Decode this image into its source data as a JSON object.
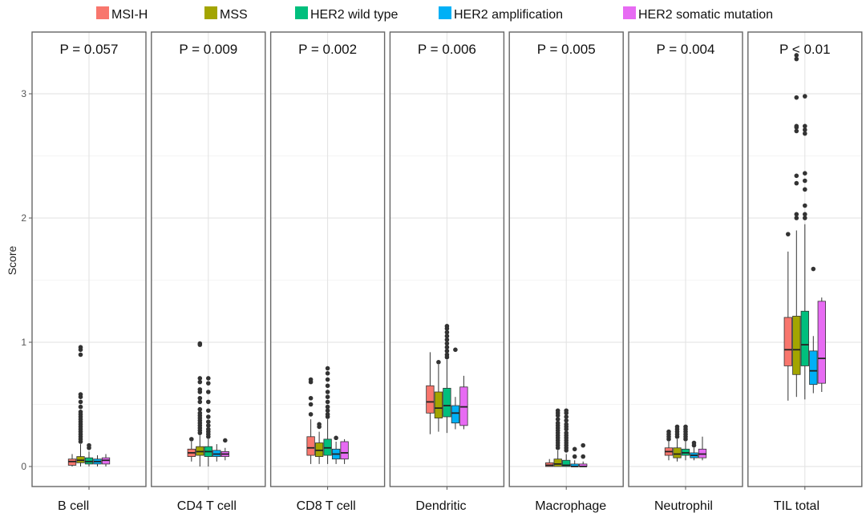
{
  "chart_data": {
    "type": "boxplot",
    "ylabel": "Score",
    "yticks": [
      0,
      1,
      2,
      3
    ],
    "ylim": [
      -0.15,
      3.45
    ],
    "grid": true,
    "legend_position": "top",
    "series": [
      {
        "name": "MSI-H",
        "color": "#F8766D"
      },
      {
        "name": "MSS",
        "color": "#A3A500"
      },
      {
        "name": "HER2 wild type",
        "color": "#00BF7D"
      },
      {
        "name": "HER2 amplification",
        "color": "#00B0F6"
      },
      {
        "name": "HER2 somatic mutation",
        "color": "#E76BF3"
      }
    ],
    "panels": [
      {
        "label": "B cell",
        "pvalue": "P = 0.057",
        "boxes": [
          {
            "q1": 0.01,
            "med": 0.04,
            "q3": 0.06,
            "lo": 0.0,
            "hi": 0.1,
            "out": []
          },
          {
            "q1": 0.03,
            "med": 0.05,
            "q3": 0.08,
            "lo": 0.0,
            "hi": 0.18,
            "out": [
              0.2,
              0.22,
              0.24,
              0.26,
              0.28,
              0.3,
              0.32,
              0.34,
              0.36,
              0.38,
              0.4,
              0.42,
              0.44,
              0.48,
              0.52,
              0.56,
              0.58,
              0.9,
              0.94,
              0.96
            ]
          },
          {
            "q1": 0.02,
            "med": 0.04,
            "q3": 0.07,
            "lo": 0.0,
            "hi": 0.12,
            "out": [
              0.15,
              0.17
            ]
          },
          {
            "q1": 0.02,
            "med": 0.04,
            "q3": 0.06,
            "lo": 0.0,
            "hi": 0.09,
            "out": []
          },
          {
            "q1": 0.02,
            "med": 0.05,
            "q3": 0.07,
            "lo": 0.0,
            "hi": 0.1,
            "out": []
          }
        ]
      },
      {
        "label": "CD4 T cell",
        "pvalue": "P = 0.009",
        "boxes": [
          {
            "q1": 0.08,
            "med": 0.11,
            "q3": 0.14,
            "lo": 0.04,
            "hi": 0.2,
            "out": [
              0.22
            ]
          },
          {
            "q1": 0.09,
            "med": 0.12,
            "q3": 0.16,
            "lo": 0.0,
            "hi": 0.25,
            "out": [
              0.27,
              0.29,
              0.31,
              0.33,
              0.35,
              0.37,
              0.39,
              0.41,
              0.43,
              0.46,
              0.52,
              0.55,
              0.6,
              0.62,
              0.68,
              0.71,
              0.98,
              0.99
            ]
          },
          {
            "q1": 0.08,
            "med": 0.12,
            "q3": 0.16,
            "lo": 0.0,
            "hi": 0.22,
            "out": [
              0.24,
              0.26,
              0.28,
              0.3,
              0.33,
              0.36,
              0.4,
              0.45,
              0.52,
              0.6,
              0.67,
              0.71
            ]
          },
          {
            "q1": 0.08,
            "med": 0.1,
            "q3": 0.13,
            "lo": 0.04,
            "hi": 0.18,
            "out": []
          },
          {
            "q1": 0.08,
            "med": 0.1,
            "q3": 0.12,
            "lo": 0.05,
            "hi": 0.15,
            "out": [
              0.21
            ]
          }
        ]
      },
      {
        "label": "CD8 T cell",
        "pvalue": "P = 0.002",
        "boxes": [
          {
            "q1": 0.09,
            "med": 0.15,
            "q3": 0.24,
            "lo": 0.02,
            "hi": 0.38,
            "out": [
              0.42,
              0.5,
              0.55,
              0.68,
              0.7
            ]
          },
          {
            "q1": 0.08,
            "med": 0.13,
            "q3": 0.19,
            "lo": 0.02,
            "hi": 0.28,
            "out": [
              0.32,
              0.34
            ]
          },
          {
            "q1": 0.09,
            "med": 0.15,
            "q3": 0.22,
            "lo": 0.02,
            "hi": 0.38,
            "out": [
              0.4,
              0.42,
              0.45,
              0.48,
              0.52,
              0.56,
              0.6,
              0.65,
              0.7,
              0.75,
              0.79
            ]
          },
          {
            "q1": 0.06,
            "med": 0.1,
            "q3": 0.14,
            "lo": 0.02,
            "hi": 0.2,
            "out": [
              0.23
            ]
          },
          {
            "q1": 0.06,
            "med": 0.11,
            "q3": 0.2,
            "lo": 0.02,
            "hi": 0.22,
            "out": []
          }
        ]
      },
      {
        "label": "Dendritic",
        "pvalue": "P = 0.006",
        "boxes": [
          {
            "q1": 0.43,
            "med": 0.52,
            "q3": 0.65,
            "lo": 0.26,
            "hi": 0.92,
            "out": []
          },
          {
            "q1": 0.39,
            "med": 0.47,
            "q3": 0.6,
            "lo": 0.28,
            "hi": 0.82,
            "out": [
              0.84
            ]
          },
          {
            "q1": 0.4,
            "med": 0.49,
            "q3": 0.63,
            "lo": 0.27,
            "hi": 0.86,
            "out": [
              0.88,
              0.9,
              0.93,
              0.96,
              0.99,
              1.02,
              1.05,
              1.08,
              1.11,
              1.13
            ]
          },
          {
            "q1": 0.35,
            "med": 0.43,
            "q3": 0.49,
            "lo": 0.3,
            "hi": 0.56,
            "out": [
              0.94
            ]
          },
          {
            "q1": 0.33,
            "med": 0.48,
            "q3": 0.64,
            "lo": 0.3,
            "hi": 0.73,
            "out": []
          }
        ]
      },
      {
        "label": "Macrophage",
        "pvalue": "P = 0.005",
        "boxes": [
          {
            "q1": 0.0,
            "med": 0.01,
            "q3": 0.03,
            "lo": 0.0,
            "hi": 0.06,
            "out": []
          },
          {
            "q1": 0.0,
            "med": 0.02,
            "q3": 0.06,
            "lo": 0.0,
            "hi": 0.13,
            "out": [
              0.15,
              0.17,
              0.19,
              0.21,
              0.23,
              0.25,
              0.27,
              0.29,
              0.31,
              0.33,
              0.35,
              0.38,
              0.41,
              0.43,
              0.45
            ]
          },
          {
            "q1": 0.0,
            "med": 0.01,
            "q3": 0.05,
            "lo": 0.0,
            "hi": 0.1,
            "out": [
              0.13,
              0.15,
              0.17,
              0.19,
              0.21,
              0.23,
              0.25,
              0.27,
              0.3,
              0.32,
              0.34,
              0.37,
              0.4,
              0.43,
              0.45
            ]
          },
          {
            "q1": 0.0,
            "med": 0.0,
            "q3": 0.02,
            "lo": 0.0,
            "hi": 0.05,
            "out": [
              0.08,
              0.14
            ]
          },
          {
            "q1": 0.0,
            "med": 0.0,
            "q3": 0.02,
            "lo": 0.0,
            "hi": 0.04,
            "out": [
              0.08,
              0.17
            ]
          }
        ]
      },
      {
        "label": "Neutrophil",
        "pvalue": "P = 0.004",
        "boxes": [
          {
            "q1": 0.09,
            "med": 0.12,
            "q3": 0.15,
            "lo": 0.05,
            "hi": 0.2,
            "out": [
              0.22,
              0.24,
              0.26,
              0.28
            ]
          },
          {
            "q1": 0.07,
            "med": 0.1,
            "q3": 0.15,
            "lo": 0.04,
            "hi": 0.22,
            "out": [
              0.24,
              0.26,
              0.28,
              0.3,
              0.32
            ]
          },
          {
            "q1": 0.09,
            "med": 0.11,
            "q3": 0.14,
            "lo": 0.05,
            "hi": 0.2,
            "out": [
              0.22,
              0.24,
              0.26,
              0.28,
              0.3,
              0.32
            ]
          },
          {
            "q1": 0.07,
            "med": 0.09,
            "q3": 0.11,
            "lo": 0.05,
            "hi": 0.15,
            "out": [
              0.17,
              0.19
            ]
          },
          {
            "q1": 0.07,
            "med": 0.1,
            "q3": 0.14,
            "lo": 0.05,
            "hi": 0.24,
            "out": []
          }
        ]
      },
      {
        "label": "TIL total",
        "pvalue": "P < 0.01",
        "boxes": [
          {
            "q1": 0.81,
            "med": 0.94,
            "q3": 1.2,
            "lo": 0.53,
            "hi": 1.73,
            "out": [
              1.87
            ]
          },
          {
            "q1": 0.74,
            "med": 0.94,
            "q3": 1.21,
            "lo": 0.56,
            "hi": 1.9,
            "out": [
              2.0,
              2.03,
              2.28,
              2.34,
              2.7,
              2.73,
              2.74,
              2.97,
              3.28,
              3.31
            ]
          },
          {
            "q1": 0.81,
            "med": 0.98,
            "q3": 1.25,
            "lo": 0.54,
            "hi": 1.95,
            "out": [
              2.0,
              2.03,
              2.1,
              2.23,
              2.3,
              2.36,
              2.68,
              2.71,
              2.74,
              2.98
            ]
          },
          {
            "q1": 0.66,
            "med": 0.77,
            "q3": 0.93,
            "lo": 0.59,
            "hi": 1.05,
            "out": [
              1.59
            ]
          },
          {
            "q1": 0.67,
            "med": 0.87,
            "q3": 1.33,
            "lo": 0.6,
            "hi": 1.36,
            "out": []
          }
        ]
      }
    ]
  }
}
